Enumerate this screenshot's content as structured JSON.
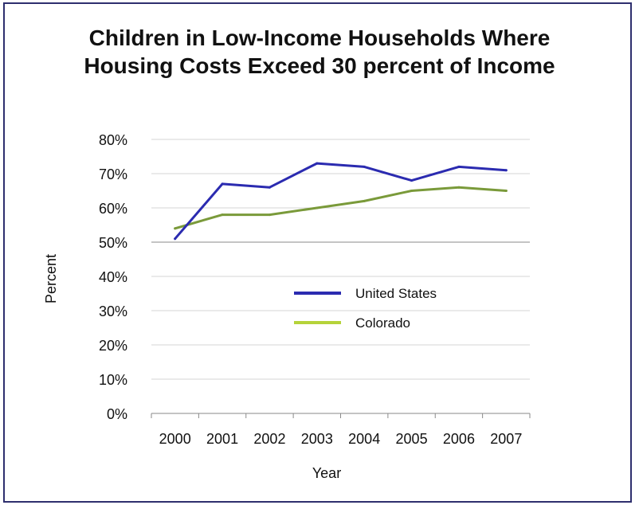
{
  "chart_data": {
    "type": "line",
    "title_lines": [
      "Children in Low-Income Households Where",
      "Housing Costs Exceed 30 percent of Income"
    ],
    "xlabel": "Year",
    "ylabel": "Percent",
    "x": [
      "2000",
      "2001",
      "2002",
      "2003",
      "2004",
      "2005",
      "2006",
      "2007"
    ],
    "y_ticks": [
      "0%",
      "10%",
      "20%",
      "30%",
      "40%",
      "50%",
      "60%",
      "70%",
      "80%"
    ],
    "ylim": [
      0,
      80
    ],
    "grid": true,
    "legend_position": "center-right",
    "series": [
      {
        "name": "United States",
        "color": "#2b2bb0",
        "values": [
          51,
          67,
          66,
          73,
          72,
          68,
          72,
          71
        ]
      },
      {
        "name": "Colorado",
        "color": "#7a9a3a",
        "legend_color": "#b5d33a",
        "values": [
          54,
          58,
          58,
          60,
          62,
          65,
          66,
          65
        ]
      }
    ]
  }
}
